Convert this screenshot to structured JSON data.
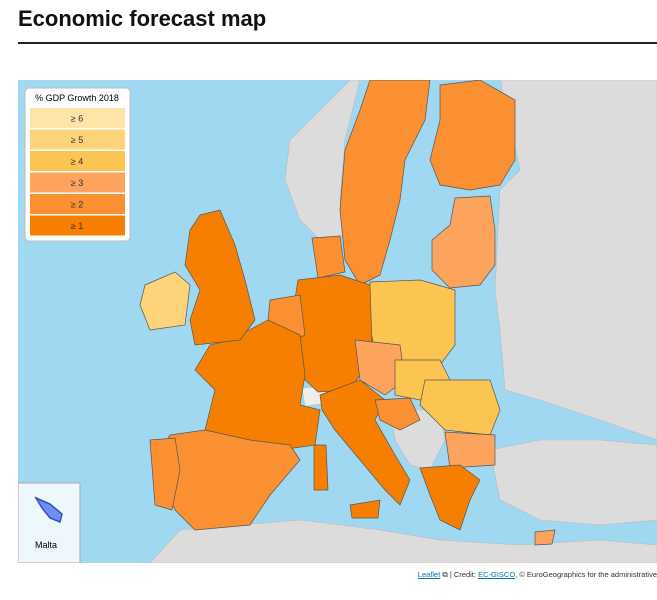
{
  "header": {
    "title": "Economic forecast map"
  },
  "legend": {
    "title": "% GDP Growth 2018",
    "items": [
      {
        "label": "≥ 6",
        "color": "#fee4a8"
      },
      {
        "label": "≥ 5",
        "color": "#fed47a"
      },
      {
        "label": "≥ 4",
        "color": "#fcc450"
      },
      {
        "label": "≥ 3",
        "color": "#fca45e"
      },
      {
        "label": "≥ 2",
        "color": "#fb9032"
      },
      {
        "label": "≥ 1",
        "color": "#f77f00"
      }
    ]
  },
  "inset": {
    "label": "Malta"
  },
  "attribution": {
    "leaflet": "Leaflet",
    "credit": "| Credit:",
    "gisco": "EC-GISCO",
    "rest": ", © EuroGeographics for the administrative"
  }
}
